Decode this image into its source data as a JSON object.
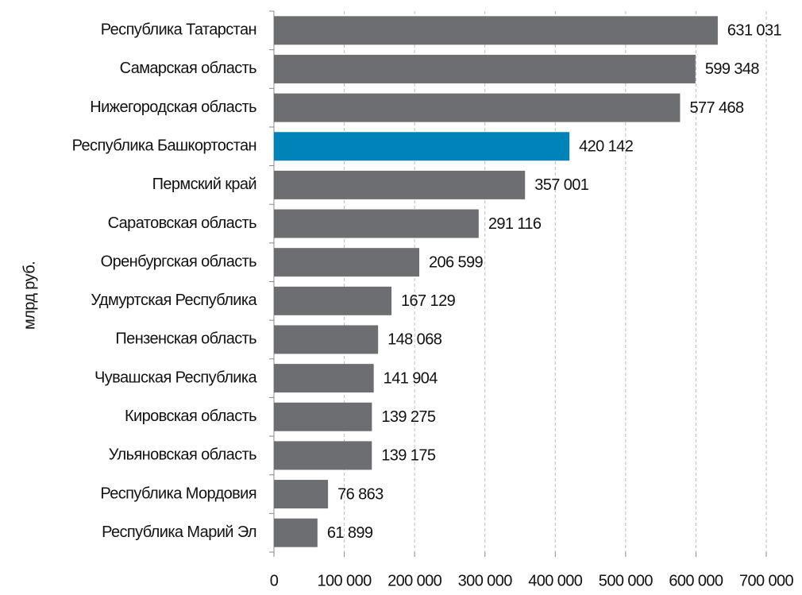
{
  "chart_data": {
    "type": "barh",
    "ylabel": "млрд  руб.",
    "categories": [
      "Республика Татарстан",
      "Самарская область",
      "Нижегородская область",
      "Республика Башкортостан",
      "Пермский край",
      "Саратовская область",
      "Оренбургская область",
      "Удмуртская  Республика",
      "Пензенская область",
      "Чувашская  Республика",
      "Кировская  область",
      "Ульяновская область",
      "Республика  Мордовия",
      "Республика Марий  Эл"
    ],
    "values": [
      631031,
      599348,
      577468,
      420142,
      357001,
      291116,
      206599,
      167129,
      148068,
      141904,
      139275,
      139175,
      76863,
      61899
    ],
    "value_labels": [
      "631 031",
      "599 348",
      "577 468",
      "420 142",
      "357 001",
      "291 116",
      "206 599",
      "167 129",
      "148 068",
      "141 904",
      "139 275",
      "139 175",
      "76 863",
      "61 899"
    ],
    "colors": [
      "#6d6e71",
      "#6d6e71",
      "#6d6e71",
      "#0083b8",
      "#6d6e71",
      "#6d6e71",
      "#6d6e71",
      "#6d6e71",
      "#6d6e71",
      "#6d6e71",
      "#6d6e71",
      "#6d6e71",
      "#6d6e71",
      "#6d6e71"
    ],
    "xlim": [
      0,
      700000
    ],
    "xticks": [
      0,
      {
        "value": 100000,
        "label": "100 000"
      },
      {
        "value": 200000,
        "label": "200 000"
      },
      {
        "value": 300000,
        "label": "300 000"
      },
      {
        "value": 400000,
        "label": "400 000"
      },
      {
        "value": 500000,
        "label": "500 000"
      },
      {
        "value": 600000,
        "label": "600 000"
      },
      {
        "value": 700000,
        "label": "700 000"
      }
    ],
    "grid": true
  }
}
